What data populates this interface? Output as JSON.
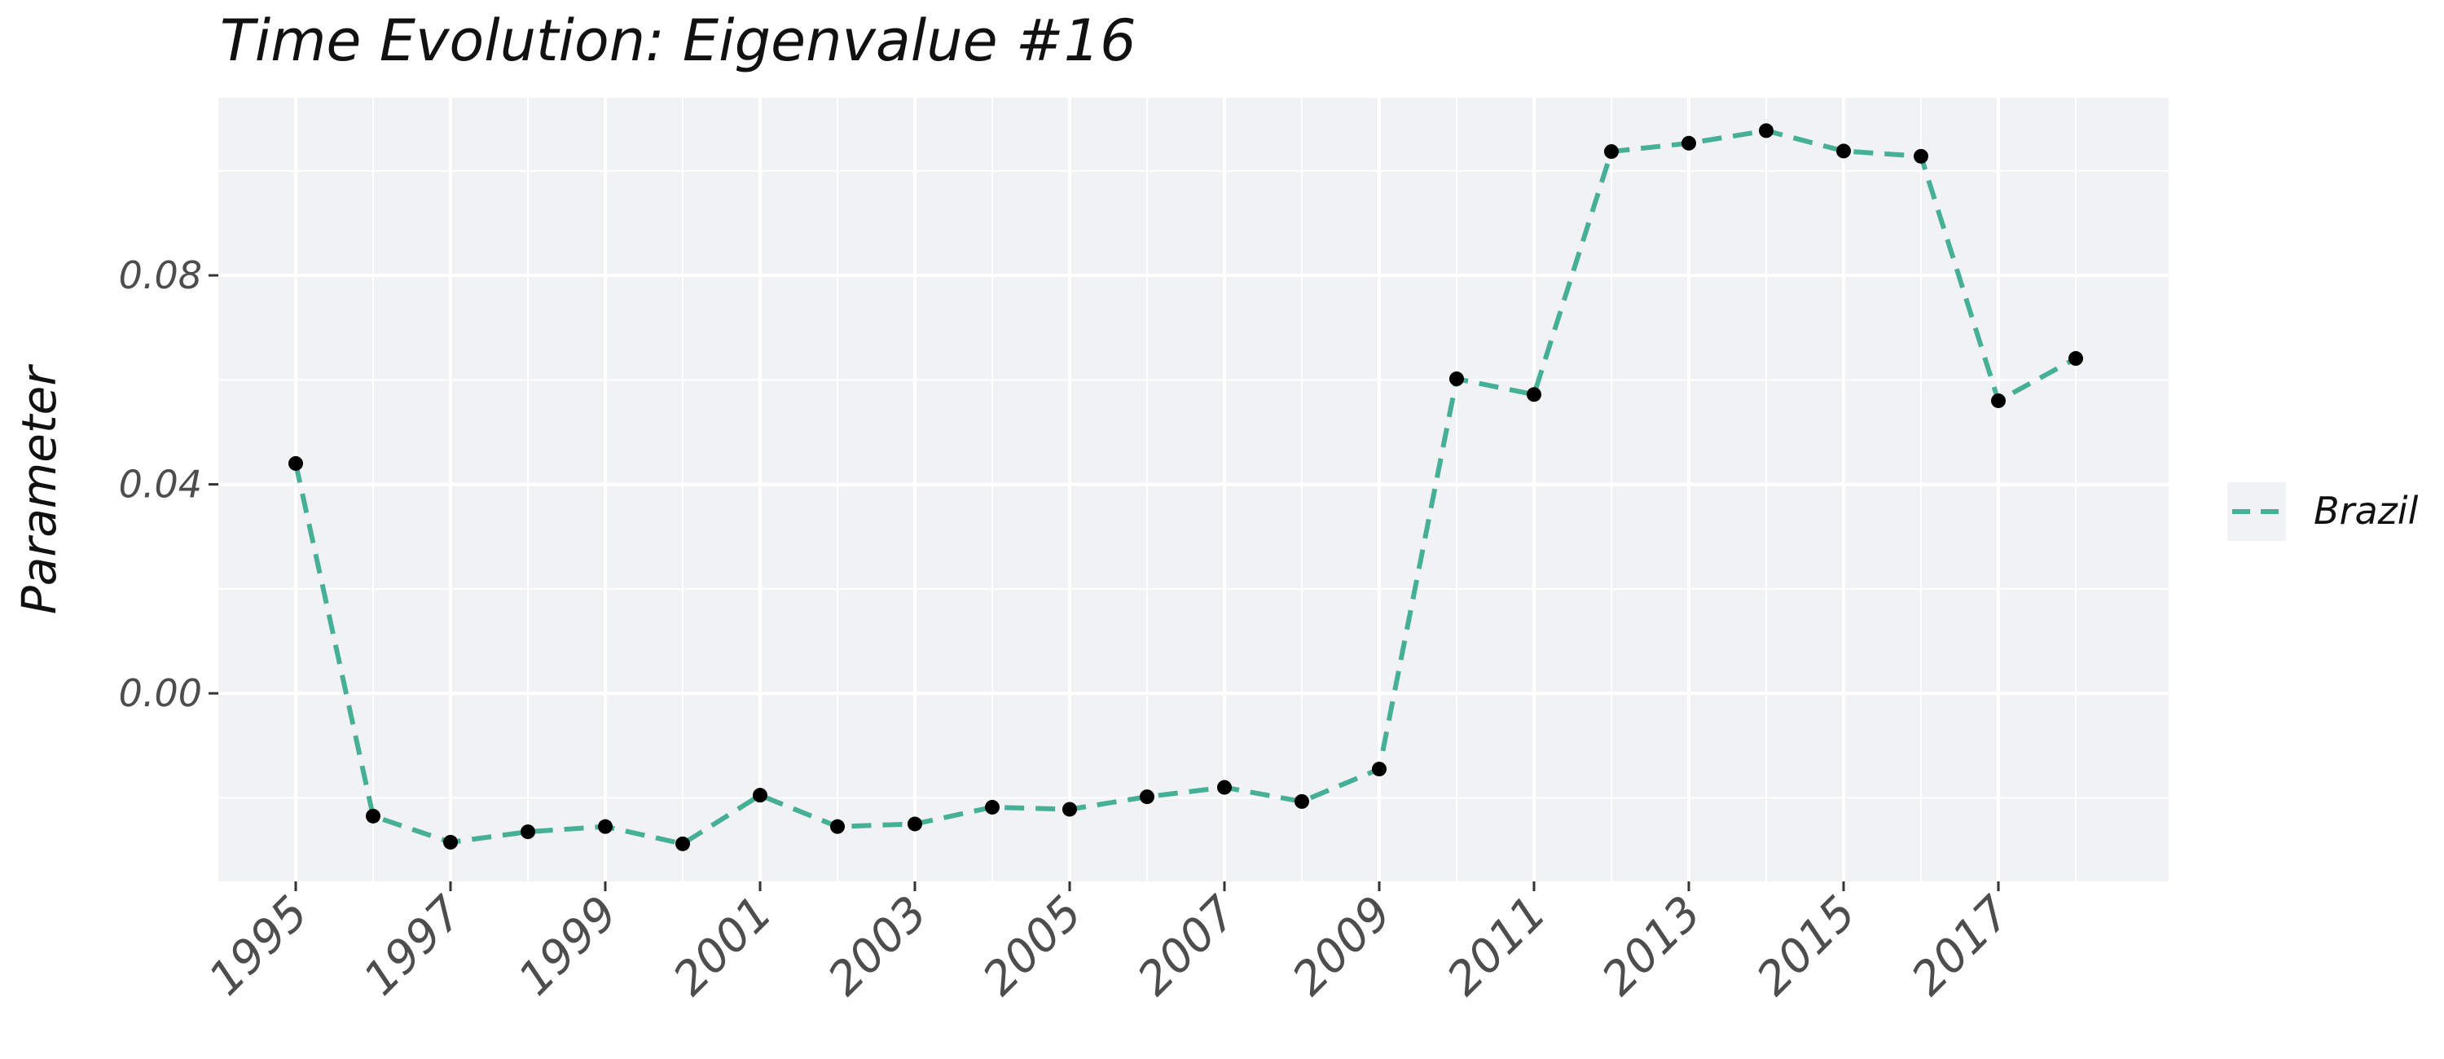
{
  "chart_data": {
    "type": "line",
    "title": "Time Evolution: Eigenvalue #16",
    "xlabel": "",
    "ylabel": "Parameter",
    "x": [
      1995,
      1996,
      1997,
      1998,
      1999,
      2000,
      2001,
      2002,
      2003,
      2004,
      2005,
      2006,
      2007,
      2008,
      2009,
      2010,
      2011,
      2012,
      2013,
      2014,
      2015,
      2016,
      2017,
      2018
    ],
    "x_ticks": [
      "1995",
      "1997",
      "1999",
      "2001",
      "2003",
      "2005",
      "2007",
      "2009",
      "2011",
      "2013",
      "2015",
      "2017"
    ],
    "y_ticks": [
      "0.00",
      "0.04",
      "0.08"
    ],
    "series": [
      {
        "name": "Brazil",
        "values": [
          0.044,
          -0.0235,
          -0.0285,
          -0.0265,
          -0.0255,
          -0.0288,
          -0.0195,
          -0.0255,
          -0.025,
          -0.0218,
          -0.0222,
          -0.0198,
          -0.018,
          -0.0207,
          -0.0145,
          0.0602,
          0.0572,
          0.1037,
          0.1053,
          0.1077,
          0.1038,
          0.1028,
          0.056,
          0.0641
        ]
      }
    ],
    "xlim": [
      1994,
      2019.2
    ],
    "ylim": [
      -0.036,
      0.114
    ],
    "grid": true,
    "legend_position": "right",
    "line_color": "#45b097",
    "point_color": "#000000",
    "panel_color": "#f1f2f3",
    "grid_color": "#ffffff"
  }
}
